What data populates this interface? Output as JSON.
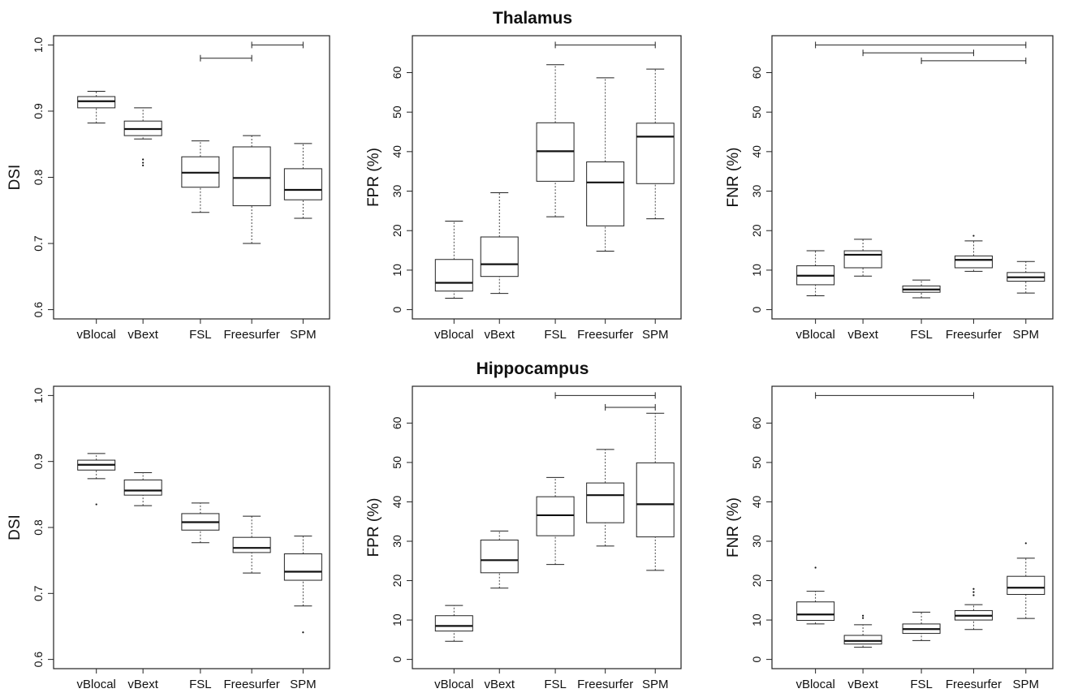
{
  "figure": {
    "row_titles": [
      "Thalamus",
      "Hippocampus"
    ]
  },
  "chart_data": [
    {
      "type": "box",
      "row": "Thalamus",
      "ylabel": "DSI",
      "ylim": [
        0.6,
        1.0
      ],
      "yticks": [
        0.6,
        0.7,
        0.8,
        0.9,
        1.0
      ],
      "ytick_labels": [
        "0.6",
        "0.7",
        "0.8",
        "0.9",
        "1.0"
      ],
      "categories": [
        "vBlocal",
        "vBext",
        "FSL",
        "Freesurfer",
        "SPM"
      ],
      "boxes": [
        {
          "whisker_low": 0.882,
          "q1": 0.905,
          "median": 0.915,
          "q3": 0.922,
          "whisker_high": 0.93,
          "outliers": []
        },
        {
          "whisker_low": 0.858,
          "q1": 0.863,
          "median": 0.873,
          "q3": 0.885,
          "whisker_high": 0.905,
          "outliers": [
            0.818,
            0.822,
            0.827
          ]
        },
        {
          "whisker_low": 0.747,
          "q1": 0.785,
          "median": 0.807,
          "q3": 0.831,
          "whisker_high": 0.855,
          "outliers": []
        },
        {
          "whisker_low": 0.7,
          "q1": 0.757,
          "median": 0.799,
          "q3": 0.846,
          "whisker_high": 0.863,
          "outliers": []
        },
        {
          "whisker_low": 0.738,
          "q1": 0.766,
          "median": 0.781,
          "q3": 0.813,
          "whisker_high": 0.851,
          "outliers": []
        }
      ],
      "significance_brackets": [
        {
          "from": "FSL",
          "to": "Freesurfer",
          "y": 0.98
        },
        {
          "from": "Freesurfer",
          "to": "SPM",
          "y": 1.0
        }
      ]
    },
    {
      "type": "box",
      "row": "Thalamus",
      "ylabel": "FPR (%)",
      "ylim": [
        0,
        67
      ],
      "yticks": [
        0,
        10,
        20,
        30,
        40,
        50,
        60
      ],
      "ytick_labels": [
        "0",
        "10",
        "20",
        "30",
        "40",
        "50",
        "60"
      ],
      "categories": [
        "vBlocal",
        "vBext",
        "FSL",
        "Freesurfer",
        "SPM"
      ],
      "boxes": [
        {
          "whisker_low": 2.9,
          "q1": 4.7,
          "median": 6.8,
          "q3": 12.7,
          "whisker_high": 22.4,
          "outliers": []
        },
        {
          "whisker_low": 4.1,
          "q1": 8.4,
          "median": 11.5,
          "q3": 18.4,
          "whisker_high": 29.6,
          "outliers": []
        },
        {
          "whisker_low": 23.5,
          "q1": 32.5,
          "median": 40.1,
          "q3": 47.3,
          "whisker_high": 62.0,
          "outliers": []
        },
        {
          "whisker_low": 14.8,
          "q1": 21.2,
          "median": 32.2,
          "q3": 37.4,
          "whisker_high": 58.7,
          "outliers": []
        },
        {
          "whisker_low": 23.0,
          "q1": 31.9,
          "median": 43.8,
          "q3": 47.2,
          "whisker_high": 60.9,
          "outliers": []
        }
      ],
      "significance_brackets": [
        {
          "from": "FSL",
          "to": "SPM",
          "y": 67
        }
      ]
    },
    {
      "type": "box",
      "row": "Thalamus",
      "ylabel": "FNR (%)",
      "ylim": [
        0,
        67
      ],
      "yticks": [
        0,
        10,
        20,
        30,
        40,
        50,
        60
      ],
      "ytick_labels": [
        "0",
        "10",
        "20",
        "30",
        "40",
        "50",
        "60"
      ],
      "categories": [
        "vBlocal",
        "vBext",
        "FSL",
        "Freesurfer",
        "SPM"
      ],
      "boxes": [
        {
          "whisker_low": 3.5,
          "q1": 6.3,
          "median": 8.6,
          "q3": 11.1,
          "whisker_high": 14.9,
          "outliers": []
        },
        {
          "whisker_low": 8.5,
          "q1": 10.6,
          "median": 13.9,
          "q3": 14.9,
          "whisker_high": 17.8,
          "outliers": []
        },
        {
          "whisker_low": 3.0,
          "q1": 4.4,
          "median": 5.1,
          "q3": 6.0,
          "whisker_high": 7.5,
          "outliers": []
        },
        {
          "whisker_low": 9.7,
          "q1": 10.6,
          "median": 12.6,
          "q3": 13.6,
          "whisker_high": 17.4,
          "outliers": [
            18.7
          ]
        },
        {
          "whisker_low": 4.2,
          "q1": 7.2,
          "median": 8.2,
          "q3": 9.4,
          "whisker_high": 12.2,
          "outliers": []
        }
      ],
      "significance_brackets": [
        {
          "from": "vBlocal",
          "to": "SPM",
          "y": 67
        },
        {
          "from": "vBext",
          "to": "Freesurfer",
          "y": 65
        },
        {
          "from": "FSL",
          "to": "SPM",
          "y": 63
        }
      ]
    },
    {
      "type": "box",
      "row": "Hippocampus",
      "ylabel": "DSI",
      "ylim": [
        0.6,
        1.0
      ],
      "yticks": [
        0.6,
        0.7,
        0.8,
        0.9,
        1.0
      ],
      "ytick_labels": [
        "0.6",
        "0.7",
        "0.8",
        "0.9",
        "1.0"
      ],
      "categories": [
        "vBlocal",
        "vBext",
        "FSL",
        "Freesurfer",
        "SPM"
      ],
      "boxes": [
        {
          "whisker_low": 0.874,
          "q1": 0.887,
          "median": 0.895,
          "q3": 0.902,
          "whisker_high": 0.912,
          "outliers": [
            0.835
          ]
        },
        {
          "whisker_low": 0.833,
          "q1": 0.849,
          "median": 0.856,
          "q3": 0.872,
          "whisker_high": 0.883,
          "outliers": []
        },
        {
          "whisker_low": 0.777,
          "q1": 0.796,
          "median": 0.808,
          "q3": 0.821,
          "whisker_high": 0.837,
          "outliers": []
        },
        {
          "whisker_low": 0.731,
          "q1": 0.762,
          "median": 0.769,
          "q3": 0.785,
          "whisker_high": 0.817,
          "outliers": []
        },
        {
          "whisker_low": 0.681,
          "q1": 0.72,
          "median": 0.733,
          "q3": 0.76,
          "whisker_high": 0.787,
          "outliers": [
            0.641
          ]
        }
      ],
      "significance_brackets": []
    },
    {
      "type": "box",
      "row": "Hippocampus",
      "ylabel": "FPR (%)",
      "ylim": [
        0,
        67
      ],
      "yticks": [
        0,
        10,
        20,
        30,
        40,
        50,
        60
      ],
      "ytick_labels": [
        "0",
        "10",
        "20",
        "30",
        "40",
        "50",
        "60"
      ],
      "categories": [
        "vBlocal",
        "vBext",
        "FSL",
        "Freesurfer",
        "SPM"
      ],
      "boxes": [
        {
          "whisker_low": 4.6,
          "q1": 7.2,
          "median": 8.5,
          "q3": 11.1,
          "whisker_high": 13.7,
          "outliers": []
        },
        {
          "whisker_low": 18.1,
          "q1": 22.0,
          "median": 25.2,
          "q3": 30.3,
          "whisker_high": 32.6,
          "outliers": []
        },
        {
          "whisker_low": 24.1,
          "q1": 31.4,
          "median": 36.6,
          "q3": 41.3,
          "whisker_high": 46.2,
          "outliers": []
        },
        {
          "whisker_low": 28.8,
          "q1": 34.7,
          "median": 41.7,
          "q3": 44.8,
          "whisker_high": 53.3,
          "outliers": []
        },
        {
          "whisker_low": 22.6,
          "q1": 31.1,
          "median": 39.4,
          "q3": 49.9,
          "whisker_high": 62.5,
          "outliers": []
        }
      ],
      "significance_brackets": [
        {
          "from": "FSL",
          "to": "SPM",
          "y": 67
        },
        {
          "from": "Freesurfer",
          "to": "SPM",
          "y": 64
        }
      ]
    },
    {
      "type": "box",
      "row": "Hippocampus",
      "ylabel": "FNR (%)",
      "ylim": [
        0,
        67
      ],
      "yticks": [
        0,
        10,
        20,
        30,
        40,
        50,
        60
      ],
      "ytick_labels": [
        "0",
        "10",
        "20",
        "30",
        "40",
        "50",
        "60"
      ],
      "categories": [
        "vBlocal",
        "vBext",
        "FSL",
        "Freesurfer",
        "SPM"
      ],
      "boxes": [
        {
          "whisker_low": 9.0,
          "q1": 9.9,
          "median": 11.4,
          "q3": 14.6,
          "whisker_high": 17.3,
          "outliers": [
            23.3
          ]
        },
        {
          "whisker_low": 3.1,
          "q1": 3.9,
          "median": 4.7,
          "q3": 6.1,
          "whisker_high": 8.8,
          "outliers": [
            10.5,
            11.1
          ]
        },
        {
          "whisker_low": 4.8,
          "q1": 6.6,
          "median": 7.7,
          "q3": 9.0,
          "whisker_high": 12.0,
          "outliers": []
        },
        {
          "whisker_low": 7.6,
          "q1": 10.0,
          "median": 11.1,
          "q3": 12.4,
          "whisker_high": 13.9,
          "outliers": [
            16.3,
            17.1,
            17.9
          ]
        },
        {
          "whisker_low": 10.4,
          "q1": 16.5,
          "median": 18.2,
          "q3": 21.1,
          "whisker_high": 25.7,
          "outliers": [
            29.5
          ]
        }
      ],
      "significance_brackets": [
        {
          "from": "vBlocal",
          "to": "Freesurfer",
          "y": 67
        }
      ]
    }
  ]
}
